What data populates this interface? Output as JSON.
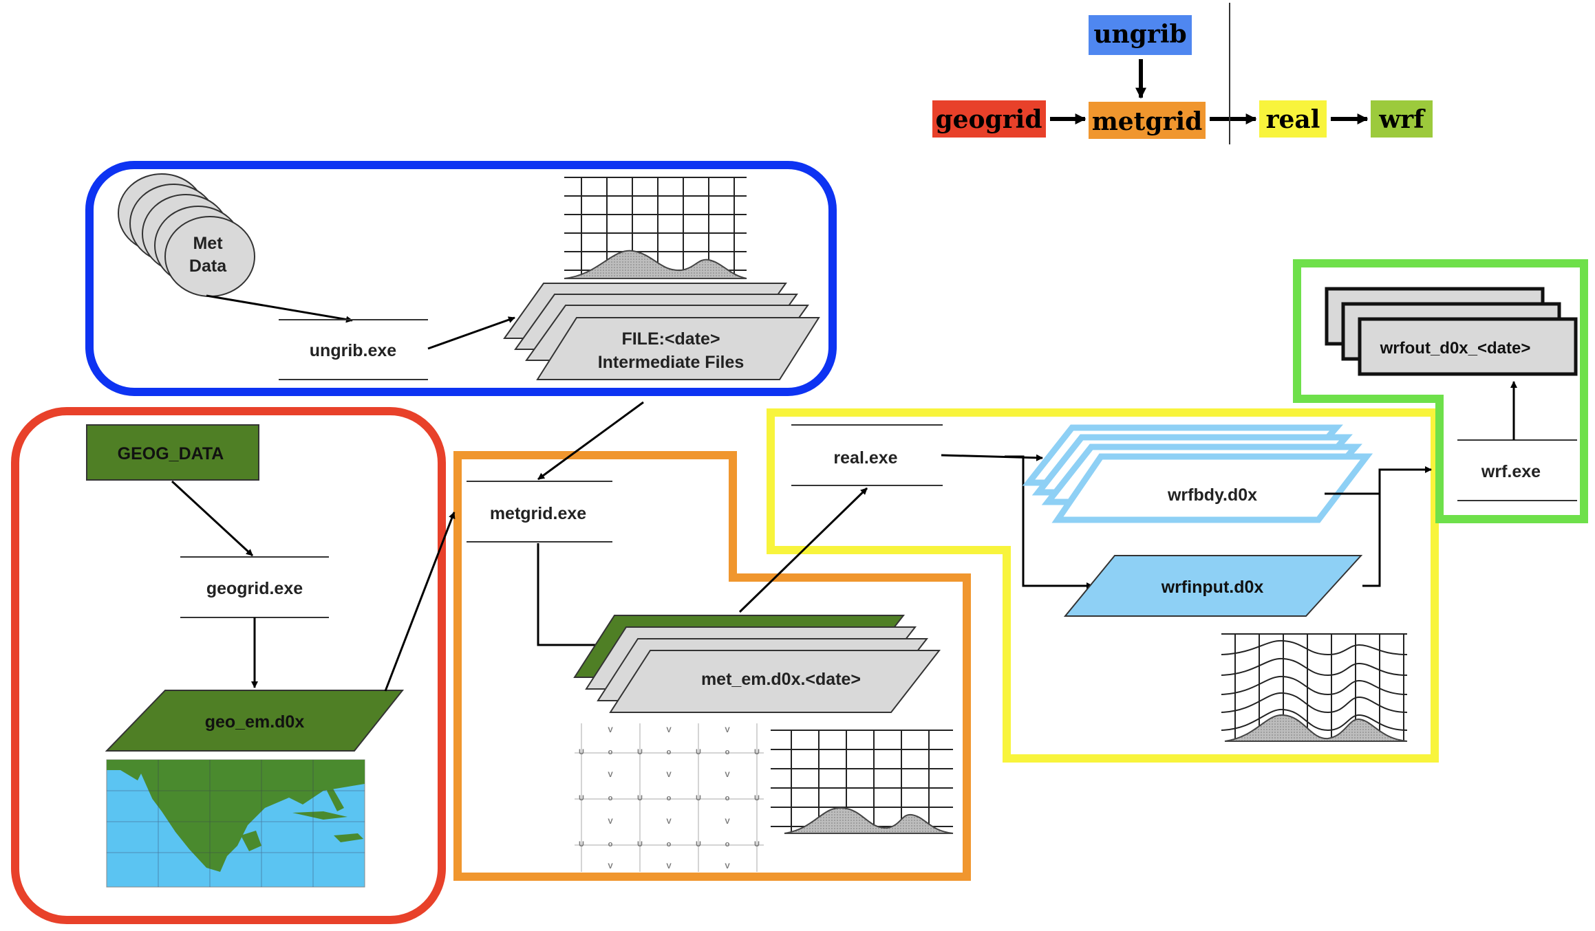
{
  "legend": {
    "ungrib": "ungrib",
    "geogrid": "geogrid",
    "metgrid": "metgrid",
    "real": "real",
    "wrf": "wrf"
  },
  "nodes": {
    "met_data_line1": "Met",
    "met_data_line2": "Data",
    "ungrib_exe": "ungrib.exe",
    "intermediate_line1": "FILE:<date>",
    "intermediate_line2": "Intermediate Files",
    "geog_data": "GEOG_DATA",
    "geogrid_exe": "geogrid.exe",
    "geo_em": "geo_em.d0x",
    "metgrid_exe": "metgrid.exe",
    "met_em": "met_em.d0x.<date>",
    "real_exe": "real.exe",
    "wrfbdy": "wrfbdy.d0x",
    "wrfinput": "wrfinput.d0x",
    "wrf_exe": "wrf.exe",
    "wrfout": "wrfout_d0x_<date>"
  },
  "colors": {
    "ungrib": "#0d33f2",
    "geogrid": "#e8412a",
    "metgrid": "#f0962e",
    "real": "#f8f43c",
    "wrf": "#6ee04a",
    "geog_green": "#4f7f25",
    "light_blue": "#8ed0f5",
    "file_gray": "#d9d9d9"
  }
}
